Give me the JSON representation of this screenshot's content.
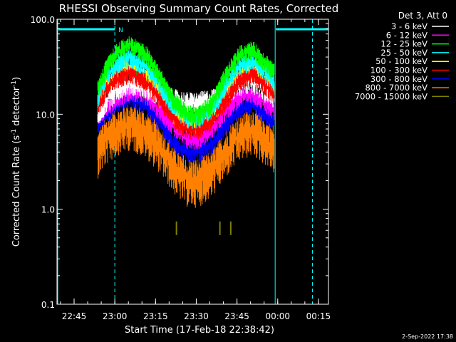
{
  "chart_data": {
    "type": "line",
    "title": "RHESSI Observing Summary Count Rates, Corrected",
    "xlabel": "Start Time (17-Feb-18 22:38:42)",
    "ylabel_main": "Corrected Count Rate (s",
    "ylabel_sup1": "-1",
    "ylabel_mid": " detector",
    "ylabel_sup2": "-1",
    "ylabel_end": ")",
    "yscale": "log",
    "ylim": [
      0.1,
      100.0
    ],
    "xlim_minutes": [
      0,
      100
    ],
    "x_ticks": [
      {
        "label": "22:45",
        "minutes": 6.3
      },
      {
        "label": "23:00",
        "minutes": 21.3
      },
      {
        "label": "23:15",
        "minutes": 36.3
      },
      {
        "label": "23:30",
        "minutes": 51.3
      },
      {
        "label": "23:45",
        "minutes": 66.3
      },
      {
        "label": "00:00",
        "minutes": 81.3
      },
      {
        "label": "00:15",
        "minutes": 96.3
      }
    ],
    "y_ticks": [
      {
        "label": "0.1",
        "value": 0.1
      },
      {
        "label": "1.0",
        "value": 1.0
      },
      {
        "label": "10.0",
        "value": 10.0
      },
      {
        "label": "100.0",
        "value": 100.0
      }
    ],
    "legend_title": "Det 3, Att 0",
    "legend_placement": "right, outside plot",
    "series": [
      {
        "name": "3 - 6 keV",
        "color": "#ffffff",
        "x": [
          15,
          18,
          22,
          27,
          33,
          38,
          43,
          48,
          52,
          57,
          62,
          67,
          72,
          77,
          80
        ],
        "y": [
          10,
          14,
          19,
          22,
          20,
          16,
          14,
          13,
          13,
          14,
          17,
          21,
          23,
          18,
          16
        ]
      },
      {
        "name": "6 - 12 keV",
        "color": "#ff00ff",
        "x": [
          15,
          18,
          22,
          27,
          33,
          38,
          43,
          48,
          52,
          57,
          62,
          67,
          72,
          77,
          80
        ],
        "y": [
          9,
          12,
          15,
          18,
          16,
          11,
          7.5,
          5.5,
          5.5,
          7,
          11,
          15,
          17,
          13,
          11
        ]
      },
      {
        "name": "12 - 25 keV",
        "color": "#00ff00",
        "x": [
          15,
          18,
          22,
          27,
          33,
          38,
          43,
          48,
          52,
          57,
          62,
          67,
          72,
          77,
          80
        ],
        "y": [
          18,
          30,
          45,
          55,
          42,
          25,
          14,
          10,
          10,
          13,
          25,
          42,
          48,
          35,
          28
        ]
      },
      {
        "name": "25 - 50 keV",
        "color": "#00ffff",
        "x": [
          15,
          18,
          22,
          27,
          33,
          38,
          43,
          48,
          52,
          57,
          62,
          67,
          72,
          77,
          80
        ],
        "y": [
          15,
          24,
          35,
          40,
          32,
          20,
          12,
          9,
          9,
          11,
          20,
          32,
          37,
          28,
          22
        ]
      },
      {
        "name": "50 - 100 keV",
        "color": "#ffff00",
        "x": [
          15,
          18,
          22,
          27,
          33,
          38,
          43,
          48,
          52,
          57,
          62,
          67,
          72,
          77,
          80
        ],
        "y": [
          14,
          20,
          28,
          32,
          26,
          17,
          10,
          8,
          8,
          9.5,
          16,
          26,
          30,
          23,
          18
        ]
      },
      {
        "name": "100 - 300 keV",
        "color": "#ff0000",
        "x": [
          15,
          18,
          22,
          27,
          33,
          38,
          43,
          48,
          52,
          57,
          62,
          67,
          72,
          77,
          80
        ],
        "y": [
          12,
          18,
          24,
          27,
          22,
          14,
          9,
          7,
          7,
          8.5,
          14,
          22,
          26,
          20,
          16
        ]
      },
      {
        "name": "300 - 800 keV",
        "color": "#0000ff",
        "x": [
          15,
          18,
          22,
          27,
          33,
          38,
          43,
          48,
          52,
          57,
          62,
          67,
          72,
          77,
          80
        ],
        "y": [
          7.5,
          10,
          13,
          15,
          12.5,
          8,
          5,
          4,
          4,
          4.8,
          7.5,
          11.5,
          13,
          10,
          8
        ]
      },
      {
        "name": "800 - 7000 keV",
        "color": "#ff8000",
        "x": [
          15,
          18,
          22,
          27,
          33,
          38,
          43,
          48,
          52,
          57,
          62,
          67,
          72,
          77,
          80
        ],
        "y": [
          4,
          5.5,
          7,
          8,
          6.5,
          4.5,
          2.8,
          2,
          2,
          2.5,
          4,
          6,
          7,
          5.5,
          4.5
        ]
      },
      {
        "name": "7000 - 15000 keV",
        "color": "#808000",
        "x": [
          44,
          60,
          64
        ],
        "y": [
          0.63,
          0.63,
          0.63
        ]
      }
    ],
    "annotations": {
      "n_marker": "N",
      "attenuator_bars_minutes": [
        [
          0,
          21.3
        ],
        [
          80.1,
          100
        ]
      ],
      "cyan_vertical_dashed_minutes": [
        21.3,
        94.1
      ],
      "cyan_vertical_solid_minutes": [
        0,
        80.1
      ]
    },
    "footer_date": "2-Sep-2022 17:38",
    "grid": false
  }
}
